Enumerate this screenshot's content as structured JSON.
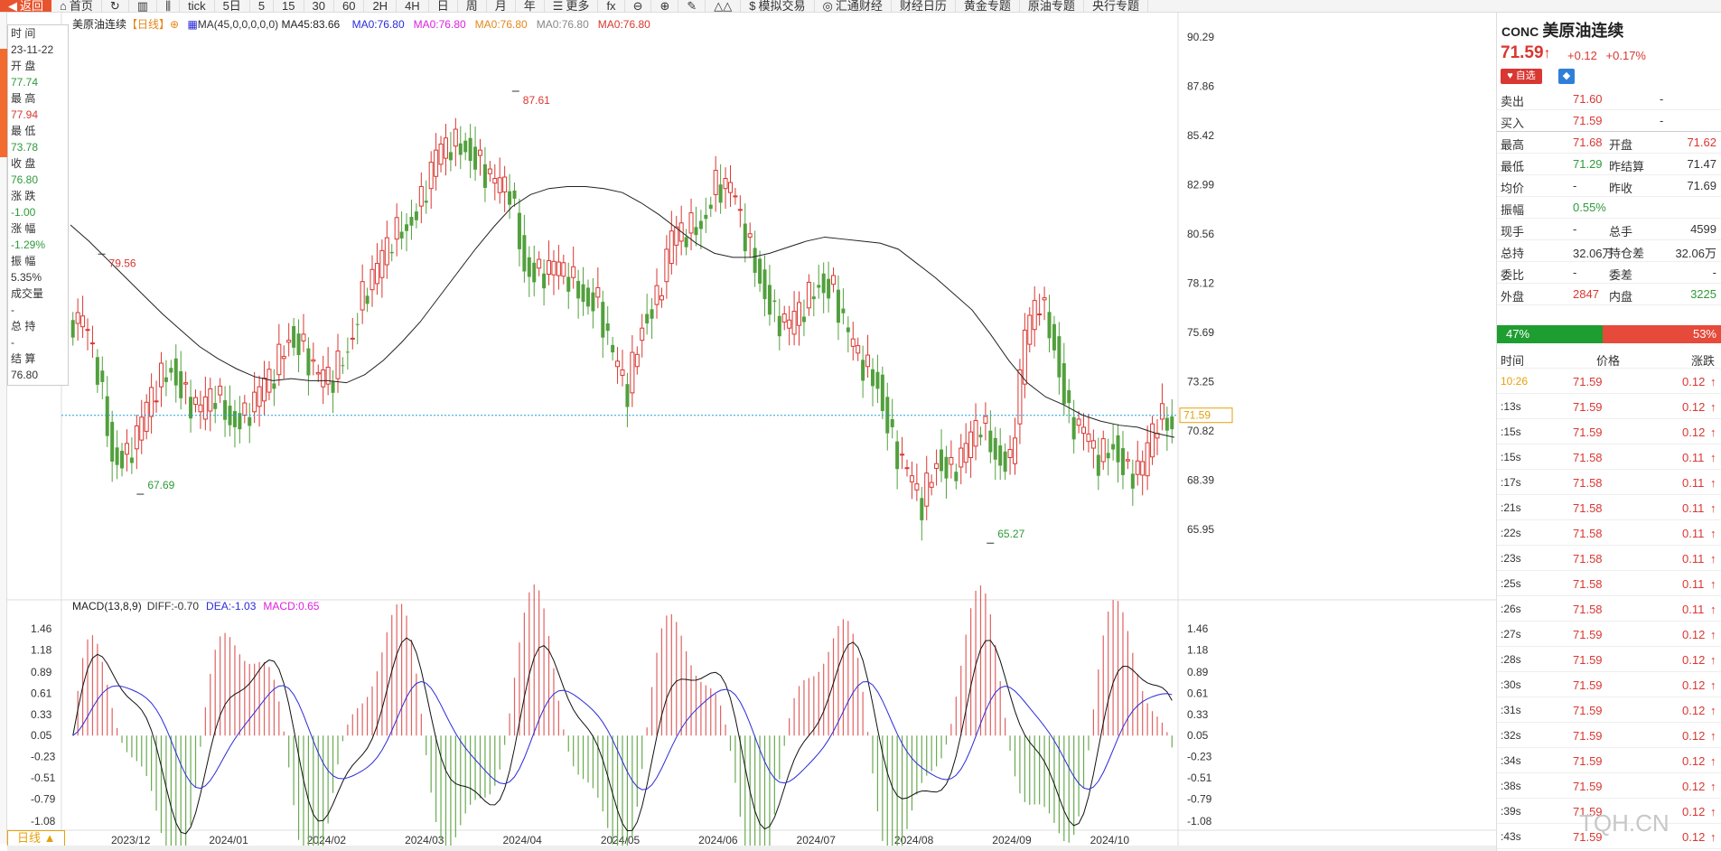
{
  "toolbar": {
    "back": "返回",
    "home": "首页",
    "tick": "tick",
    "periods": [
      "5日",
      "5",
      "15",
      "30",
      "60",
      "2H",
      "4H",
      "日",
      "周",
      "月",
      "年"
    ],
    "more": "更多",
    "fx": "fx",
    "simulated": "模拟交易",
    "huitong": "汇通财经",
    "calendar": "财经日历",
    "gold_topic": "黄金专题",
    "oil_topic": "原油专题",
    "cb_topic": "央行专题"
  },
  "infobox": [
    {
      "k": "时 间",
      "v": "23-11-22",
      "c": "#333"
    },
    {
      "k": "开 盘",
      "v": "77.74",
      "c": "#2e9a3a"
    },
    {
      "k": "最 高",
      "v": "77.94",
      "c": "#d93731"
    },
    {
      "k": "最 低",
      "v": "73.78",
      "c": "#2e9a3a"
    },
    {
      "k": "收 盘",
      "v": "76.80",
      "c": "#2e9a3a"
    },
    {
      "k": "涨 跌",
      "v": "-1.00",
      "c": "#2e9a3a"
    },
    {
      "k": "涨 幅",
      "v": "-1.29%",
      "c": "#2e9a3a"
    },
    {
      "k": "振 幅",
      "v": "5.35%",
      "c": "#333"
    },
    {
      "k": "成交量",
      "v": "-",
      "c": "#333"
    },
    {
      "k": "总 持",
      "v": "-",
      "c": "#333"
    },
    {
      "k": "结 算",
      "v": "76.80",
      "c": "#333"
    }
  ],
  "legend": {
    "name": "美原油连续",
    "period": "【日线】",
    "plus": "⊕",
    "ma": "MA(45,0,0,0,0,0)",
    "ma45": "MA45:83.66",
    "mas": [
      "MA0:76.80",
      "MA0:76.80",
      "MA0:76.80",
      "MA0:76.80",
      "MA0:76.80"
    ],
    "ma_colors": [
      "#2b2bd9",
      "#e020e0",
      "#e5871b",
      "#888888",
      "#d93731"
    ]
  },
  "macd_legend": {
    "title": "MACD(13,8,9)",
    "diff": "DIFF:-0.70",
    "dea": "DEA:-1.03",
    "macd": "MACD:0.65"
  },
  "chart_data": {
    "type": "candlestick",
    "title": "美原油连续 日线",
    "y_ticks": [
      "90.29",
      "87.86",
      "85.42",
      "82.99",
      "80.56",
      "78.12",
      "75.69",
      "73.25",
      "70.82",
      "68.39",
      "65.95"
    ],
    "macd_ticks": [
      "1.46",
      "1.18",
      "0.89",
      "0.61",
      "0.33",
      "0.05",
      "-0.23",
      "-0.51",
      "-0.79",
      "-1.08"
    ],
    "x_labels": [
      "2023/12",
      "2024/01",
      "2024/02",
      "2024/03",
      "2024/04",
      "2024/05",
      "2024/06",
      "2024/07",
      "2024/08",
      "2024/09",
      "2024/10"
    ],
    "annotations": {
      "high": "87.61",
      "low": "65.27",
      "local_high": "79.56",
      "local_low": "67.69"
    },
    "current_price": "71.59",
    "left_tag": "73.25",
    "ylim": [
      64.5,
      91.5
    ],
    "ma45": [
      81.0,
      80.2,
      79.3,
      78.4,
      77.5,
      76.6,
      75.8,
      75.0,
      74.4,
      73.9,
      73.5,
      73.3,
      73.4,
      73.3,
      73.3,
      73.2,
      73.6,
      74.3,
      75.2,
      76.2,
      77.4,
      78.6,
      79.8,
      80.9,
      81.9,
      82.5,
      82.8,
      82.9,
      82.9,
      82.8,
      82.6,
      82.1,
      81.5,
      80.8,
      80.1,
      79.6,
      79.4,
      79.4,
      79.6,
      79.9,
      80.2,
      80.4,
      80.3,
      80.2,
      80.1,
      79.8,
      79.1,
      78.4,
      77.6,
      76.8,
      75.6,
      74.3,
      73.2,
      72.5,
      72.1,
      71.6,
      71.3,
      71.1,
      71.0,
      70.7,
      70.5
    ],
    "closes": [
      75.8,
      73.8,
      70.0,
      69.5,
      70.8,
      73.0,
      74.4,
      72.5,
      71.4,
      72.6,
      71.8,
      71.5,
      72.3,
      73.6,
      76.0,
      74.9,
      73.0,
      73.4,
      75.4,
      77.5,
      78.4,
      80.3,
      81.4,
      82.2,
      84.0,
      84.9,
      85.3,
      84.0,
      82.6,
      82.7,
      79.4,
      78.6,
      78.5,
      78.4,
      77.9,
      77.2,
      74.0,
      72.7,
      76.6,
      77.3,
      80.0,
      80.6,
      81.5,
      83.0,
      82.4,
      80.4,
      78.8,
      76.5,
      75.6,
      76.9,
      78.6,
      77.8,
      75.0,
      74.0,
      73.6,
      70.3,
      68.3,
      67.1,
      69.9,
      68.8,
      69.5,
      71.2,
      70.1,
      69.2,
      75.1,
      77.3,
      75.5,
      71.5,
      70.3,
      69.3,
      70.6,
      68.7,
      68.6,
      71.4,
      71.6
    ]
  },
  "right": {
    "code": "CONC",
    "name": "美原油连续",
    "price": "71.59",
    "arrow": "↑",
    "chg": "+0.12",
    "chg_pct": "+0.17%",
    "fav": "♥ 自选",
    "bell": "🔔",
    "ask_label": "卖出",
    "ask": "71.60",
    "ask_vol": "-",
    "bid_label": "买入",
    "bid": "71.59",
    "bid_vol": "-",
    "stats": [
      [
        "最高",
        "71.68",
        "开盘",
        "71.62",
        "#d93731",
        "#d93731"
      ],
      [
        "最低",
        "71.29",
        "昨结算",
        "71.47",
        "#2e9a3a",
        "#333"
      ],
      [
        "均价",
        "-",
        "昨收",
        "71.69",
        "#333",
        "#333"
      ],
      [
        "振幅",
        "0.55%",
        "",
        "",
        "#2e9a3a",
        "#333"
      ],
      [
        "现手",
        "-",
        "总手",
        "4599",
        "#333",
        "#333"
      ],
      [
        "总持",
        "32.06万",
        "持仓差",
        "32.06万",
        "#333",
        "#333"
      ],
      [
        "委比",
        "-",
        "委差",
        "-",
        "#333",
        "#333"
      ],
      [
        "外盘",
        "2847",
        "内盘",
        "3225",
        "#d93731",
        "#2e9a3a"
      ]
    ],
    "ratio_buy": "47%",
    "ratio_sell": "53%",
    "trades_header": [
      "时间",
      "价格",
      "涨跌"
    ],
    "trades": [
      [
        "10:26",
        "71.59",
        "0.12"
      ],
      [
        ":13s",
        "71.59",
        "0.12"
      ],
      [
        ":15s",
        "71.59",
        "0.12"
      ],
      [
        ":15s",
        "71.58",
        "0.11"
      ],
      [
        ":17s",
        "71.58",
        "0.11"
      ],
      [
        ":21s",
        "71.58",
        "0.11"
      ],
      [
        ":22s",
        "71.58",
        "0.11"
      ],
      [
        ":23s",
        "71.58",
        "0.11"
      ],
      [
        ":25s",
        "71.58",
        "0.11"
      ],
      [
        ":26s",
        "71.58",
        "0.11"
      ],
      [
        ":27s",
        "71.59",
        "0.12"
      ],
      [
        ":28s",
        "71.59",
        "0.12"
      ],
      [
        ":30s",
        "71.59",
        "0.12"
      ],
      [
        ":31s",
        "71.59",
        "0.12"
      ],
      [
        ":32s",
        "71.59",
        "0.12"
      ],
      [
        ":34s",
        "71.59",
        "0.12"
      ],
      [
        ":38s",
        "71.59",
        "0.12"
      ],
      [
        ":39s",
        "71.59",
        "0.12"
      ],
      [
        ":43s",
        "71.59",
        "0.12"
      ]
    ]
  },
  "dayk": "日线 ▲",
  "watermark": "TQH.CN"
}
